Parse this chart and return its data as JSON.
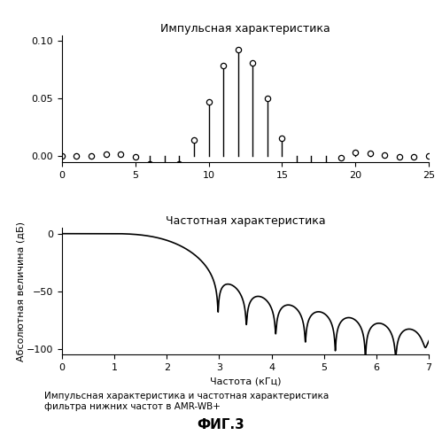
{
  "title1": "Импульсная характеристика",
  "title2": "Частотная характеристика",
  "xlabel2": "Частота (кГц)",
  "ylabel2": "Абсолютная величина (дБ)",
  "caption": "Импульсная характеристика и частотная характеристика\nфильтра нижних частот в AMR-WB+",
  "fig_label": "ФИГ.3",
  "impulse_xlim": [
    0,
    25
  ],
  "impulse_ylim": [
    -0.005,
    0.105
  ],
  "impulse_yticks": [
    0,
    0.05,
    0.1
  ],
  "freq_xlim": [
    0,
    7
  ],
  "freq_ylim": [
    -105,
    5
  ],
  "freq_yticks": [
    -100,
    -50,
    0
  ],
  "bg_color": "#ffffff",
  "line_color": "#000000"
}
